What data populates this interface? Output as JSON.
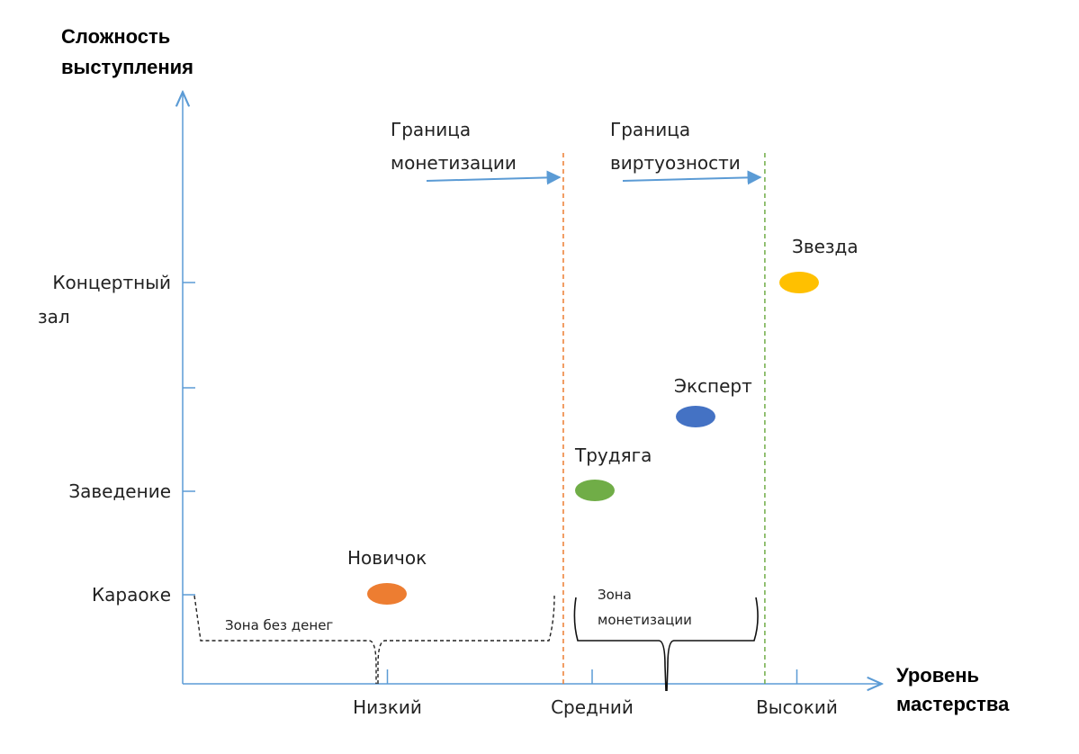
{
  "chart_data": {
    "type": "scatter",
    "title": "",
    "ylabel_lines": [
      "Сложность",
      "выступления"
    ],
    "xlabel_lines": [
      "Уровень",
      "мастерства"
    ],
    "x_ticks": [
      {
        "label": "Низкий",
        "value": 1
      },
      {
        "label": "Средний",
        "value": 2
      },
      {
        "label": "Высокий",
        "value": 3
      }
    ],
    "y_ticks": [
      {
        "label": "Караоке",
        "value": 1
      },
      {
        "label": "Заведение",
        "value": 2
      },
      {
        "label": "",
        "value": 3
      },
      {
        "label": "Концертный зал",
        "value": 4
      }
    ],
    "xlim": [
      0,
      3.6
    ],
    "ylim": [
      0,
      6.5
    ],
    "points": [
      {
        "name": "Новичок",
        "x": 1.0,
        "y": 1.0,
        "color": "#ED7D31"
      },
      {
        "name": "Трудяга",
        "x": 2.0,
        "y": 2.0,
        "color": "#70AD47"
      },
      {
        "name": "Эксперт",
        "x": 2.4,
        "y": 2.7,
        "color": "#4472C4"
      },
      {
        "name": "Звезда",
        "x": 3.0,
        "y": 4.0,
        "color": "#FFC000"
      }
    ],
    "boundaries": [
      {
        "label_lines": [
          "Граница",
          "монетизации"
        ],
        "x": 1.7,
        "color": "#ED7D31"
      },
      {
        "label_lines": [
          "Граница",
          "виртуозности"
        ],
        "x": 2.7,
        "color": "#70AD47"
      }
    ],
    "zones": [
      {
        "label": "Зона без денег"
      },
      {
        "label_lines": [
          "Зона",
          "монетизации"
        ]
      }
    ],
    "axis_color": "#5B9BD5",
    "arrow_color": "#5B9BD5"
  }
}
